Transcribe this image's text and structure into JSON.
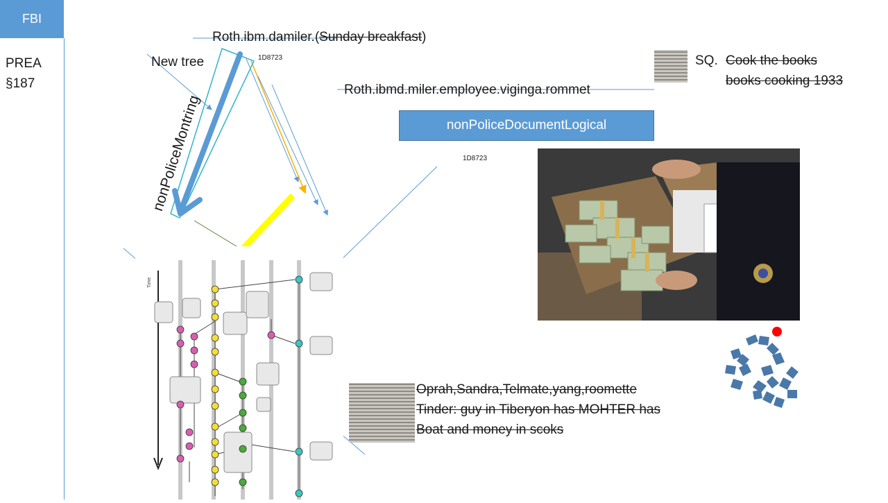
{
  "header": {
    "fbi_label": "FBI"
  },
  "sidebar": {
    "line1": "PREA",
    "line2": "§187"
  },
  "top": {
    "path1_prefix": "Roth.ibm.damiler.(",
    "path1_struck": "Sunday breakfast",
    "path1_suffix": ")",
    "code_a": "1D8723",
    "new_tree": "New tree",
    "path2": "Roth.ibmd.miler.employee.viginga.rommet",
    "box_label": "nonPoliceDocumentLogical",
    "code_b": "1D8723",
    "vertical_label": "nonPoliceMontring"
  },
  "sq": {
    "label": "SQ.",
    "line1": "Cook the books",
    "line2": "books cooking 1933"
  },
  "notes": [
    "Oprah,Sandra,Telmate,yang,roomette",
    "Tinder: guy in Tiberyon has MOHTER has",
    "Boat and money in scoks"
  ],
  "colors": {
    "accent": "#5b9bd5",
    "yellow": "#ffff00",
    "orange": "#f4b400",
    "green": "#548235",
    "red": "#ff0000",
    "puzzle": "#4a78a8"
  }
}
